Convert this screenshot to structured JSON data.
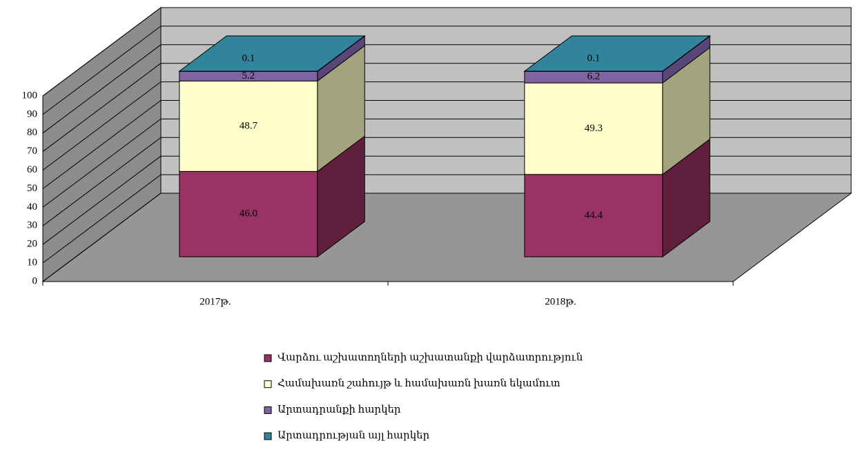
{
  "chart_data": {
    "type": "bar3d_stacked",
    "categories": [
      "2017թ.",
      "2018թ."
    ],
    "series": [
      {
        "name": "Վարձու աշխատողների աշխատանքի վարձատրություն",
        "color": "#993366",
        "side_color": "#5f1f3d",
        "values": [
          46,
          44.4
        ],
        "value_labels": [
          "46.0",
          "44.4"
        ]
      },
      {
        "name": "Համախառն շահույթ և համախառն խառն եկամուտ",
        "color": "#ffffcc",
        "side_color": "#a3a37e",
        "values": [
          48.7,
          49.3
        ]
      },
      {
        "name": "Արտադրանքի հարկեր",
        "color": "#8064a2",
        "side_color": "#5a4578",
        "values": [
          5.2,
          6.2
        ]
      },
      {
        "name": "Արտադրության այլ հարկեր",
        "color": "#31849b",
        "side_color": "#25637a",
        "values": [
          0.1,
          0.1
        ]
      }
    ],
    "ylim": [
      0,
      100
    ],
    "yticks": [
      0,
      10,
      20,
      30,
      40,
      50,
      60,
      70,
      80,
      90,
      100
    ],
    "grid": true,
    "legend": "bottom"
  }
}
